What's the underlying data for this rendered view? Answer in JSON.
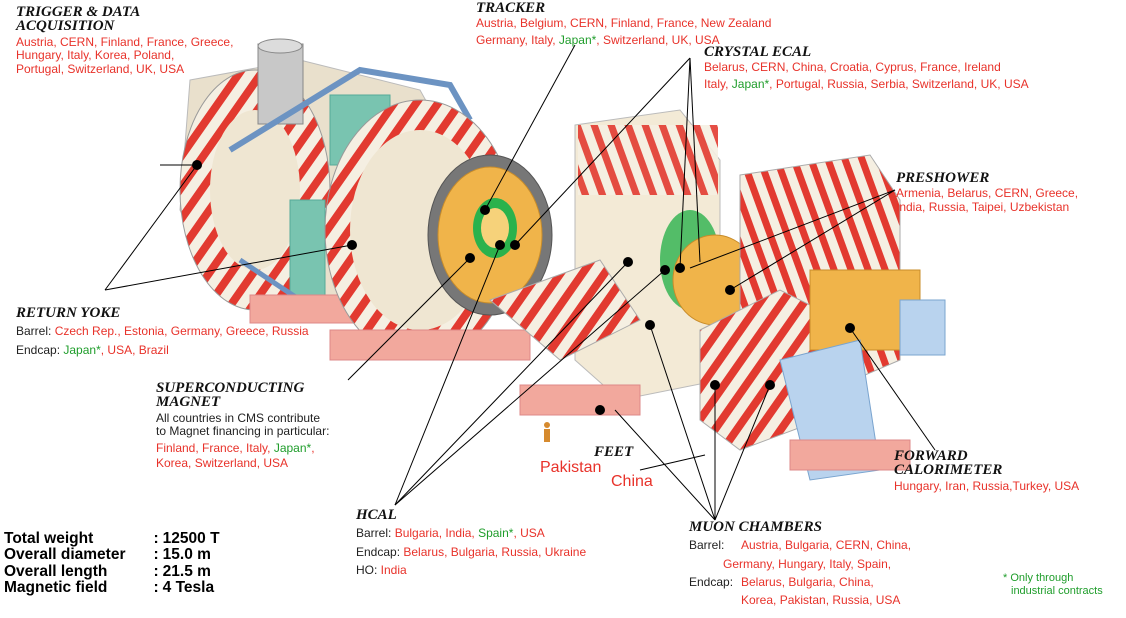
{
  "labels": {
    "trigger": {
      "title_line1": "TRIGGER & DATA",
      "title_line2": "ACQUISITION",
      "line1": "Austria, CERN, Finland, France, Greece,",
      "line2": "Hungary, Italy, Korea, Poland,",
      "line3": "Portugal, Switzerland, UK, USA"
    },
    "tracker": {
      "title": "TRACKER",
      "line1": "Austria, Belgium, CERN, Finland, France, New Zealand",
      "line2a": "Germany, Italy, ",
      "line2b": "Japan*",
      "line2c": ", Switzerland, UK, USA"
    },
    "ecal": {
      "title": "CRYSTAL ECAL",
      "line1": "Belarus, CERN, China, Croatia, Cyprus, France, Ireland",
      "line2a": "Italy, ",
      "line2b": "Japan*",
      "line2c": ", Portugal, Russia, Serbia, Switzerland, UK, USA"
    },
    "preshower": {
      "title": "PRESHOWER",
      "line1": "Armenia, Belarus, CERN, Greece,",
      "line2": "India, Russia, Taipei, Uzbekistan"
    },
    "yoke": {
      "title": "RETURN YOKE",
      "barrel_label": "Barrel: ",
      "barrel_list": "Czech Rep., Estonia, Germany, Greece, Russia",
      "endcap_label": "Endcap: ",
      "endcap_japan": "Japan*",
      "endcap_rest": ", USA, Brazil"
    },
    "magnet": {
      "title_line1": "SUPERCONDUCTING",
      "title_line2": "MAGNET",
      "line1": "All countries in CMS contribute",
      "line2": "to Magnet financing in particular:",
      "line3a": "Finland, France, Italy, ",
      "line3b": "Japan*",
      "line3c": ",",
      "line4": "Korea, Switzerland, USA"
    },
    "feet": {
      "title": "FEET",
      "pakistan": "Pakistan",
      "china": "China"
    },
    "forward": {
      "title_line1": "FORWARD",
      "title_line2": "CALORIMETER",
      "line1": "Hungary, Iran, Russia,Turkey, USA"
    },
    "hcal": {
      "title": "HCAL",
      "barrel_label": "Barrel: ",
      "barrel_a": "Bulgaria, India, ",
      "barrel_spain": "Spain*",
      "barrel_c": ", USA",
      "endcap_label": "Endcap: ",
      "endcap_list": "Belarus, Bulgaria, Russia, Ukraine",
      "ho_label": "HO: ",
      "ho_list": "India"
    },
    "muon": {
      "title": "MUON CHAMBERS",
      "barrel_label": "Barrel:",
      "barrel_line1": "Austria, Bulgaria, CERN, China,",
      "barrel_line2": "Germany, Hungary, Italy, Spain,",
      "endcap_label": "Endcap:",
      "endcap_line1": "Belarus, Bulgaria, China,",
      "endcap_line2": "Korea, Pakistan, Russia, USA"
    }
  },
  "specs": [
    {
      "name": "Total  weight",
      "sep": ":",
      "value": "12500  T"
    },
    {
      "name": "Overall  diameter",
      "sep": ":",
      "value": "15.0  m"
    },
    {
      "name": "Overall  length",
      "sep": ":",
      "value": "21.5  m"
    },
    {
      "name": "Magnetic  field",
      "sep": ":",
      "value": "4  Tesla"
    }
  ],
  "note": {
    "line1": "* Only through",
    "line2": "industrial contracts"
  },
  "colors": {
    "red": "#e8322a",
    "green": "#1f9d2b",
    "cream": "#f3ead6",
    "orange": "#f0b44a",
    "steel": "#8db3d6",
    "blue": "#b9d3ee",
    "teal": "#76c1ae",
    "base": "#f2a89d"
  }
}
